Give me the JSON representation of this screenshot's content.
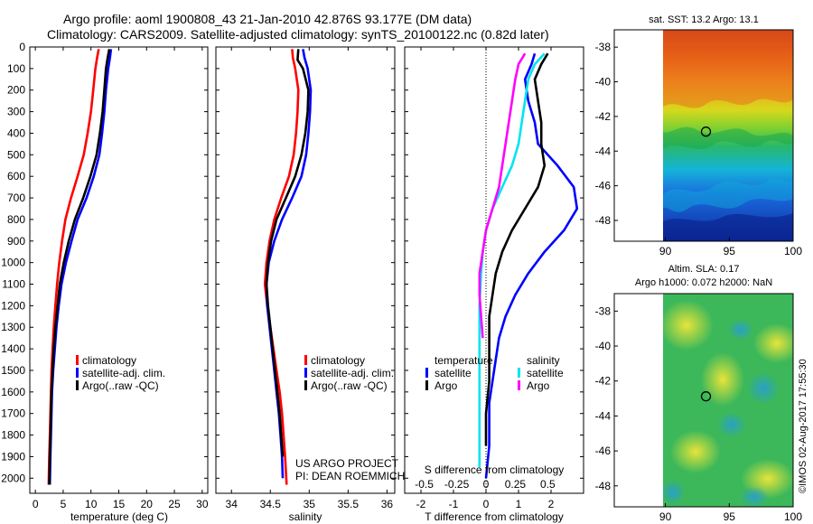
{
  "header": {
    "line1": "Argo profile: aoml 1900808_43 21-Jan-2010 42.876S 93.177E (DM data)",
    "line2": "Climatology: CARS2009. Satellite-adjusted climatology: synTS_20100122.nc (0.82d later)"
  },
  "colors": {
    "climatology": "#ff0000",
    "satellite_adj": "#0000ff",
    "argo": "#000000",
    "diff_sat_t": "#0000ff",
    "diff_argo_t": "#000000",
    "diff_sat_s": "#00e5ee",
    "diff_argo_s": "#ff00ff"
  },
  "chart_data": [
    {
      "type": "line",
      "id": "temperature",
      "xlabel": "temperature (deg C)",
      "xlim": [
        -1,
        31
      ],
      "xticks": [
        0,
        5,
        10,
        15,
        20,
        25,
        30
      ],
      "ylim": [
        2070,
        0
      ],
      "yticks": [
        0,
        100,
        200,
        300,
        400,
        500,
        600,
        700,
        800,
        900,
        1000,
        1100,
        1200,
        1300,
        1400,
        1500,
        1600,
        1700,
        1800,
        1900,
        2000
      ],
      "legend": [
        "climatology",
        "satellite-adj. clim.",
        "Argo(..raw -QC)"
      ],
      "legend_position": "lower-right",
      "series": [
        {
          "name": "climatology",
          "color_key": "climatology",
          "x": [
            11.4,
            11.1,
            10.8,
            10.4,
            10.0,
            9.4,
            8.7,
            7.6,
            6.4,
            5.4,
            4.8,
            4.3,
            3.9,
            3.6,
            3.3,
            3.1,
            2.9,
            2.8,
            2.7,
            2.6,
            2.5,
            2.4
          ],
          "y": [
            10,
            50,
            100,
            200,
            300,
            400,
            500,
            600,
            700,
            800,
            900,
            1000,
            1100,
            1200,
            1300,
            1400,
            1500,
            1600,
            1700,
            1800,
            1900,
            2030
          ]
        },
        {
          "name": "satellite-adj. clim.",
          "color_key": "satellite_adj",
          "x": [
            13.6,
            13.4,
            13.1,
            12.7,
            12.4,
            12.0,
            11.5,
            10.5,
            9.2,
            7.6,
            6.5,
            5.5,
            4.7,
            4.2,
            3.8,
            3.5,
            3.2,
            3.0,
            2.9,
            2.8,
            2.7,
            2.6
          ],
          "y": [
            10,
            50,
            100,
            200,
            300,
            400,
            500,
            600,
            700,
            800,
            900,
            1000,
            1100,
            1200,
            1300,
            1400,
            1500,
            1600,
            1700,
            1800,
            1900,
            2030
          ]
        },
        {
          "name": "Argo(..raw -QC)",
          "color_key": "argo",
          "x": [
            13.3,
            13.0,
            12.7,
            12.4,
            12.1,
            11.6,
            11.0,
            9.9,
            8.6,
            7.1,
            6.0,
            5.1,
            4.4,
            4.0,
            3.6,
            3.3,
            3.1,
            2.9,
            2.8,
            2.7,
            2.6,
            2.5
          ],
          "y": [
            10,
            50,
            100,
            200,
            300,
            400,
            500,
            600,
            700,
            800,
            900,
            1000,
            1100,
            1200,
            1300,
            1400,
            1500,
            1600,
            1700,
            1800,
            1900,
            2030
          ]
        }
      ]
    },
    {
      "type": "line",
      "id": "salinity",
      "xlabel": "salinity",
      "xlim": [
        33.8,
        36.1
      ],
      "xticks": [
        34,
        34.5,
        35,
        35.5,
        36
      ],
      "ylim": [
        2070,
        0
      ],
      "legend": [
        "climatology",
        "satellite-adj. clim.",
        "Argo(..raw -QC)"
      ],
      "legend_position": "lower-right",
      "annotation": [
        "US ARGO PROJECT",
        "PI: DEAN ROEMMICH"
      ],
      "series": [
        {
          "name": "climatology",
          "color_key": "climatology",
          "x": [
            34.78,
            34.79,
            34.82,
            34.86,
            34.85,
            34.83,
            34.8,
            34.74,
            34.64,
            34.55,
            34.49,
            34.45,
            34.43,
            34.46,
            34.5,
            34.54,
            34.58,
            34.62,
            34.65,
            34.67,
            34.69,
            34.71
          ],
          "y": [
            10,
            50,
            100,
            200,
            300,
            400,
            500,
            600,
            700,
            800,
            900,
            1000,
            1100,
            1200,
            1300,
            1400,
            1500,
            1600,
            1700,
            1800,
            1900,
            2030
          ]
        },
        {
          "name": "satellite-adj. clim.",
          "color_key": "satellite_adj",
          "x": [
            34.92,
            34.94,
            34.98,
            35.02,
            35.01,
            34.99,
            34.96,
            34.9,
            34.78,
            34.65,
            34.55,
            34.48,
            34.45,
            34.46,
            34.49,
            34.52,
            34.55,
            34.58,
            34.61,
            34.63,
            34.65,
            34.66
          ],
          "y": [
            10,
            50,
            100,
            200,
            300,
            400,
            500,
            600,
            700,
            800,
            900,
            1000,
            1100,
            1200,
            1300,
            1400,
            1500,
            1600,
            1700,
            1800,
            1900,
            2000
          ]
        },
        {
          "name": "Argo(..raw -QC)",
          "color_key": "argo",
          "x": [
            34.86,
            34.85,
            34.92,
            34.99,
            34.98,
            34.95,
            34.9,
            34.82,
            34.7,
            34.58,
            34.51,
            34.47,
            34.45,
            34.47,
            34.5,
            34.53,
            34.56,
            34.59,
            34.62,
            34.64,
            34.66
          ],
          "y": [
            10,
            60,
            100,
            200,
            300,
            400,
            500,
            600,
            700,
            800,
            900,
            1000,
            1100,
            1200,
            1300,
            1400,
            1500,
            1600,
            1700,
            1800,
            1900
          ]
        }
      ]
    },
    {
      "type": "line",
      "id": "difference",
      "xlabel": "T difference from climatology",
      "xlabel_top": "S difference from climatology",
      "xlim": [
        -2.5,
        3
      ],
      "xticks": [
        -2,
        -1,
        0,
        1,
        2
      ],
      "s_ticks": [
        "-0.5",
        "-0.25",
        "0",
        "0.25",
        "0.5"
      ],
      "s_tick_positions": [
        -1.9,
        -0.9,
        0,
        0.9,
        1.9
      ],
      "ylim": [
        2070,
        0
      ],
      "legend_headers": [
        "temperature",
        "salinity"
      ],
      "legend": [
        "satellite",
        "Argo",
        "satellite",
        "Argo"
      ],
      "series": [
        {
          "name": "satellite",
          "group": "temperature",
          "color_key": "diff_sat_t",
          "x": [
            1.5,
            1.4,
            1.2,
            1.3,
            1.5,
            1.6,
            2.2,
            2.7,
            2.8,
            2.4,
            1.8,
            1.3,
            0.9,
            0.6,
            0.4,
            0.3,
            0.2,
            0.1,
            0.1,
            0.0
          ],
          "y": [
            30,
            80,
            150,
            250,
            350,
            450,
            550,
            650,
            750,
            850,
            950,
            1050,
            1150,
            1250,
            1350,
            1450,
            1550,
            1650,
            1850,
            2000
          ]
        },
        {
          "name": "Argo",
          "group": "temperature",
          "color_key": "diff_argo_t",
          "x": [
            1.9,
            1.7,
            1.5,
            1.6,
            1.7,
            1.7,
            1.8,
            1.6,
            1.2,
            0.8,
            0.5,
            0.3,
            0.2,
            0.1,
            0.1,
            0.1,
            0.0,
            0.0
          ],
          "y": [
            30,
            80,
            150,
            250,
            350,
            450,
            550,
            650,
            750,
            850,
            950,
            1050,
            1150,
            1250,
            1400,
            1550,
            1700,
            1850
          ]
        },
        {
          "name": "satellite",
          "group": "salinity",
          "color_key": "diff_sat_s",
          "x": [
            1.8,
            1.5,
            1.3,
            1.2,
            1.1,
            1.0,
            0.8,
            0.5,
            0.2,
            0.0,
            -0.1,
            -0.15,
            -0.2,
            -0.2,
            -0.2,
            -0.2,
            -0.2,
            -0.2
          ],
          "y": [
            30,
            80,
            150,
            250,
            350,
            450,
            550,
            650,
            750,
            850,
            950,
            1050,
            1200,
            1350,
            1500,
            1650,
            1800,
            1950
          ]
        },
        {
          "name": "Argo",
          "group": "salinity",
          "color_key": "diff_argo_s",
          "x": [
            1.2,
            1.0,
            0.9,
            0.8,
            0.7,
            0.6,
            0.5,
            0.4,
            0.2,
            0.0,
            -0.1,
            -0.2,
            -0.2,
            -0.15,
            -0.1
          ],
          "y": [
            30,
            80,
            150,
            250,
            350,
            450,
            550,
            650,
            750,
            850,
            950,
            1050,
            1150,
            1250,
            1350
          ]
        }
      ]
    },
    {
      "type": "heatmap",
      "id": "sst_map",
      "title": "sat. SST: 13.2  Argo: 13.1",
      "xlim": [
        86,
        100
      ],
      "xticks": [
        90,
        95,
        100
      ],
      "ylim": [
        -49.2,
        -37
      ],
      "yticks": [
        -38,
        -40,
        -42,
        -44,
        -46,
        -48
      ],
      "marker": {
        "lon": 93.177,
        "lat": -42.876
      },
      "data_extent_lon": [
        90,
        100
      ]
    },
    {
      "type": "heatmap",
      "id": "sla_map",
      "title_lines": [
        "Altim. SLA: 0.17",
        "Argo h1000: 0.072 h2000: NaN"
      ],
      "xlim": [
        86,
        100
      ],
      "xticks": [
        90,
        95,
        100
      ],
      "ylim": [
        -49.2,
        -37
      ],
      "yticks": [
        -38,
        -40,
        -42,
        -44,
        -46,
        -48
      ],
      "marker": {
        "lon": 93.177,
        "lat": -42.876
      },
      "data_extent_lon": [
        90,
        100
      ]
    }
  ],
  "footer": {
    "timestamp": "©IMOS 02-Aug-2017 17:55:30"
  }
}
